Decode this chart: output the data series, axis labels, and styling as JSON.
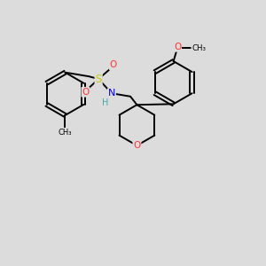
{
  "bg_color": "#dcdcdc",
  "bond_color": "#000000",
  "atom_colors": {
    "S": "#cccc00",
    "O": "#ff3333",
    "N": "#0000ee",
    "H": "#44aaaa",
    "C": "#000000"
  }
}
